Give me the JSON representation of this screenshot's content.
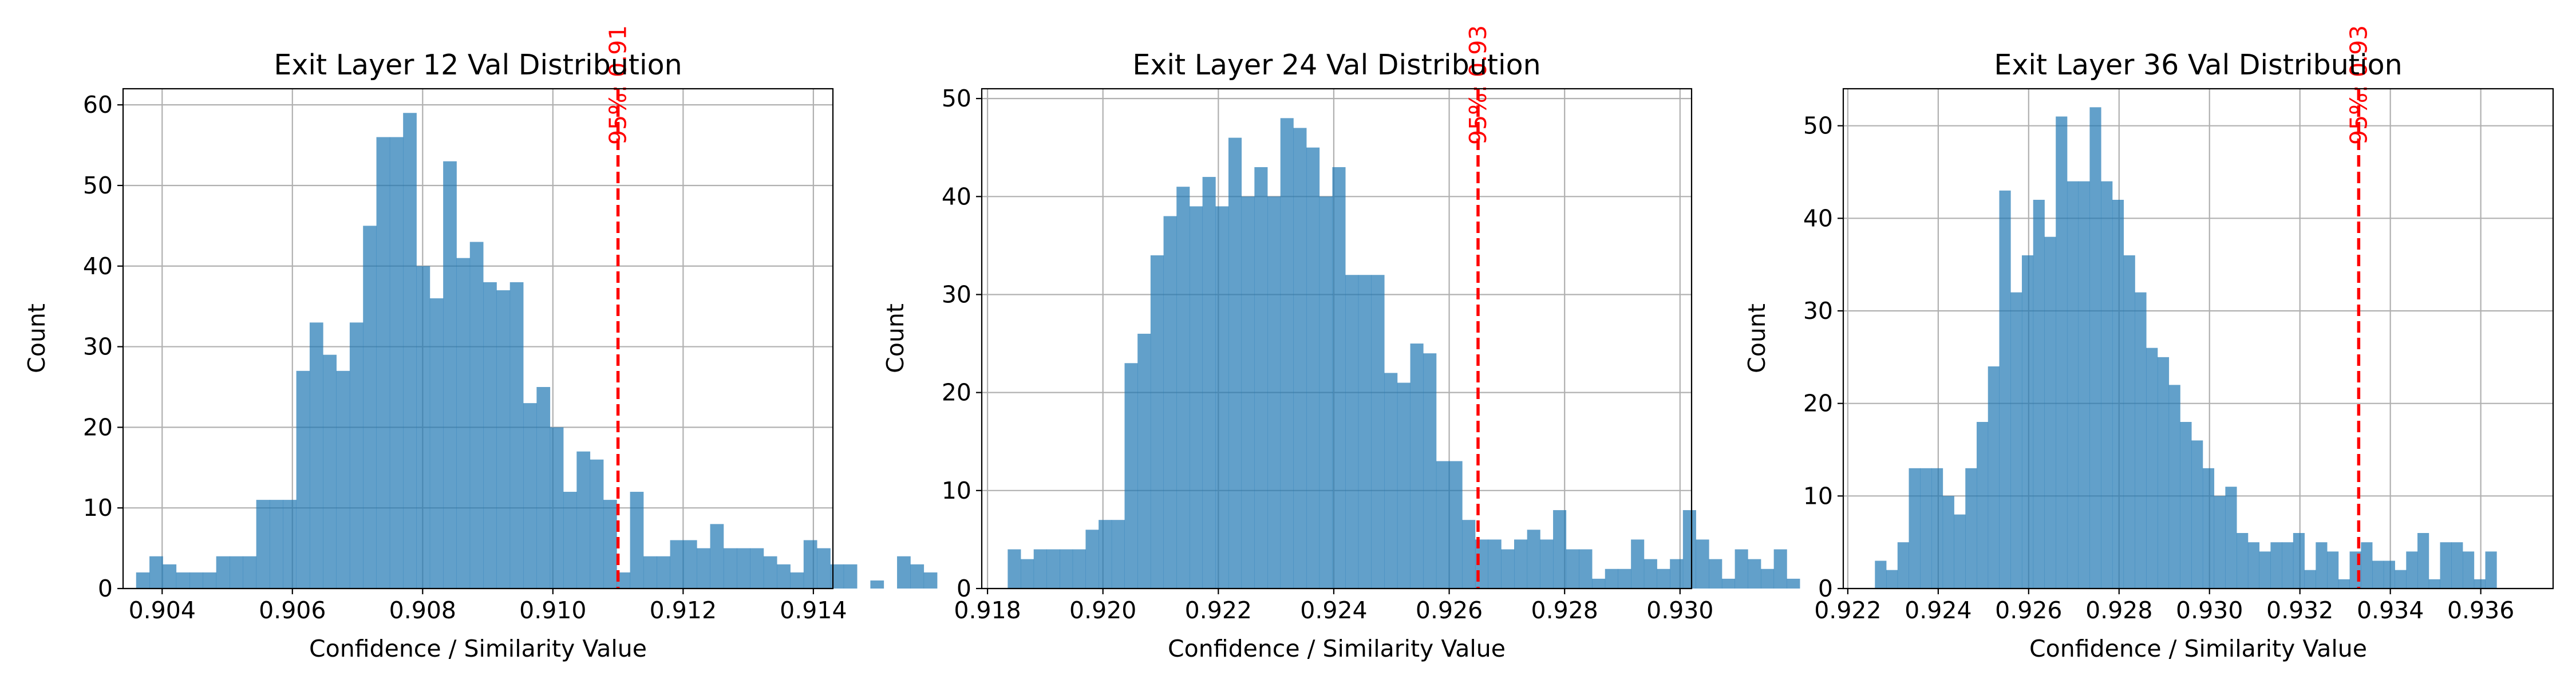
{
  "colors": {
    "bar": "#1f77b4",
    "bar_alpha": 0.7,
    "threshold_line": "#ff0000",
    "grid": "#b0b0b0"
  },
  "chart_data": [
    {
      "type": "bar",
      "title": "Exit Layer 12 Val Distribution",
      "xlabel": "Confidence / Similarity Value",
      "ylabel": "Count",
      "grid": true,
      "xlim": [
        0.9034,
        0.9143
      ],
      "ylim": [
        0,
        62
      ],
      "xticks": [
        0.904,
        0.906,
        0.908,
        0.91,
        0.912,
        0.914
      ],
      "xtick_labels": [
        "0.904",
        "0.906",
        "0.908",
        "0.910",
        "0.912",
        "0.914"
      ],
      "yticks": [
        0,
        10,
        20,
        30,
        40,
        50,
        60
      ],
      "ytick_labels": [
        "0",
        "10",
        "20",
        "30",
        "40",
        "50",
        "60"
      ],
      "bin_start": 0.9036,
      "bin_width": 0.000205,
      "counts": [
        2,
        4,
        3,
        2,
        2,
        2,
        4,
        4,
        4,
        11,
        11,
        11,
        27,
        33,
        29,
        27,
        33,
        45,
        56,
        56,
        59,
        40,
        36,
        53,
        41,
        43,
        38,
        37,
        38,
        23,
        25,
        20,
        12,
        17,
        16,
        11,
        2,
        12,
        4,
        4,
        6,
        6,
        5,
        8,
        5,
        5,
        5,
        4,
        3,
        2,
        6,
        5,
        3,
        3,
        0,
        1,
        0,
        4,
        3,
        2
      ],
      "threshold": {
        "value": 0.911,
        "label": "95%: 0.91"
      }
    },
    {
      "type": "bar",
      "title": "Exit Layer 24 Val Distribution",
      "xlabel": "Confidence / Similarity Value",
      "ylabel": "Count",
      "grid": true,
      "xlim": [
        0.9179,
        0.9302
      ],
      "ylim": [
        0,
        51
      ],
      "xticks": [
        0.918,
        0.92,
        0.922,
        0.924,
        0.926,
        0.928,
        0.93
      ],
      "xtick_labels": [
        "0.918",
        "0.920",
        "0.922",
        "0.924",
        "0.926",
        "0.928",
        "0.930"
      ],
      "yticks": [
        0,
        10,
        20,
        30,
        40,
        50
      ],
      "ytick_labels": [
        "0",
        "10",
        "20",
        "30",
        "40",
        "50"
      ],
      "bin_start": 0.91835,
      "bin_width": 0.000225,
      "counts": [
        4,
        3,
        4,
        4,
        4,
        4,
        6,
        7,
        7,
        23,
        26,
        34,
        38,
        41,
        39,
        42,
        39,
        46,
        40,
        43,
        40,
        48,
        47,
        45,
        40,
        43,
        32,
        32,
        32,
        22,
        21,
        25,
        24,
        13,
        13,
        7,
        5,
        5,
        4,
        5,
        6,
        5,
        8,
        4,
        4,
        1,
        2,
        2,
        5,
        3,
        2,
        3,
        8,
        5,
        3,
        1,
        4,
        3,
        2,
        4,
        1
      ],
      "threshold": {
        "value": 0.9265,
        "label": "95%: 0.93"
      }
    },
    {
      "type": "bar",
      "title": "Exit Layer 36 Val Distribution",
      "xlabel": "Confidence / Similarity Value",
      "ylabel": "Count",
      "grid": true,
      "xlim": [
        0.9219,
        0.9376
      ],
      "ylim": [
        0,
        54
      ],
      "xticks": [
        0.922,
        0.924,
        0.926,
        0.928,
        0.93,
        0.932,
        0.934,
        0.936
      ],
      "xtick_labels": [
        "0.922",
        "0.924",
        "0.926",
        "0.928",
        "0.930",
        "0.932",
        "0.934",
        "0.936"
      ],
      "yticks": [
        0,
        10,
        20,
        30,
        40,
        50
      ],
      "ytick_labels": [
        "0",
        "10",
        "20",
        "30",
        "40",
        "50"
      ],
      "bin_start": 0.9226,
      "bin_width": 0.00025,
      "counts": [
        3,
        2,
        5,
        13,
        13,
        13,
        10,
        8,
        13,
        18,
        24,
        43,
        32,
        36,
        42,
        38,
        51,
        44,
        44,
        52,
        44,
        42,
        36,
        32,
        26,
        25,
        22,
        18,
        16,
        13,
        10,
        11,
        6,
        5,
        4,
        5,
        5,
        6,
        2,
        5,
        4,
        1,
        4,
        5,
        3,
        3,
        2,
        4,
        6,
        1,
        5,
        5,
        4,
        1,
        4
      ],
      "threshold": {
        "value": 0.9333,
        "label": "95%: 0.93"
      }
    }
  ]
}
